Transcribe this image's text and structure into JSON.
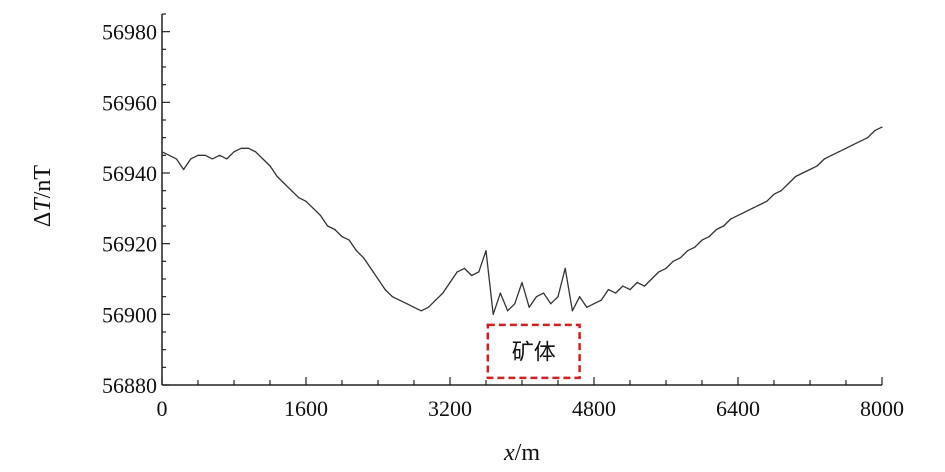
{
  "chart_data": {
    "type": "line",
    "title": "",
    "xlabel": {
      "italic": "x",
      "rest": "/m"
    },
    "ylabel": {
      "delta": "Δ",
      "italic": "T",
      "rest": "/nT"
    },
    "xlim": [
      0,
      8000
    ],
    "ylim": [
      56880,
      56985
    ],
    "x_ticks": [
      0,
      1600,
      3200,
      4800,
      6400,
      8000
    ],
    "x_tick_labels": [
      "0",
      "1600",
      "3200",
      "4800",
      "6400",
      "8000"
    ],
    "y_ticks": [
      56880,
      56900,
      56920,
      56940,
      56960,
      56980
    ],
    "y_tick_labels": [
      "56880",
      "56900",
      "56920",
      "56940",
      "56960",
      "56980"
    ],
    "grid": false,
    "line_color": "#333333",
    "annotation": {
      "text": "矿体",
      "x_range": [
        3620,
        4640
      ],
      "y_range": [
        56882,
        56897
      ],
      "border_color": "#cc2222"
    },
    "series": [
      {
        "x": [
          0,
          80,
          160,
          240,
          320,
          400,
          480,
          560,
          640,
          720,
          800,
          880,
          960,
          1040,
          1120,
          1200,
          1280,
          1360,
          1440,
          1520,
          1600,
          1680,
          1760,
          1840,
          1920,
          2000,
          2080,
          2160,
          2240,
          2320,
          2400,
          2480,
          2560,
          2640,
          2720,
          2800,
          2880,
          2960,
          3040,
          3120,
          3200,
          3280,
          3360,
          3440,
          3520,
          3600,
          3680,
          3760,
          3840,
          3920,
          4000,
          4080,
          4160,
          4240,
          4320,
          4400,
          4480,
          4560,
          4640,
          4720,
          4800,
          4880,
          4960,
          5040,
          5120,
          5200,
          5280,
          5360,
          5440,
          5520,
          5600,
          5680,
          5760,
          5840,
          5920,
          6000,
          6080,
          6160,
          6240,
          6320,
          6400,
          6480,
          6560,
          6640,
          6720,
          6800,
          6880,
          6960,
          7040,
          7120,
          7200,
          7280,
          7360,
          7440,
          7520,
          7600,
          7680,
          7760,
          7840,
          7920,
          8000
        ],
        "values": [
          56946,
          56945,
          56944,
          56941,
          56944,
          56945,
          56945,
          56944,
          56945,
          56944,
          56946,
          56947,
          56947,
          56946,
          56944,
          56942,
          56939,
          56937,
          56935,
          56933,
          56932,
          56930,
          56928,
          56925,
          56924,
          56922,
          56921,
          56918,
          56916,
          56913,
          56910,
          56907,
          56905,
          56904,
          56903,
          56902,
          56901,
          56902,
          56904,
          56906,
          56909,
          56912,
          56913,
          56911,
          56912,
          56918,
          56900,
          56906,
          56901,
          56903,
          56909,
          56902,
          56905,
          56906,
          56903,
          56905,
          56913,
          56901,
          56905,
          56902,
          56903,
          56904,
          56907,
          56906,
          56908,
          56907,
          56909,
          56908,
          56910,
          56912,
          56913,
          56915,
          56916,
          56918,
          56919,
          56921,
          56922,
          56924,
          56925,
          56927,
          56928,
          56929,
          56930,
          56931,
          56932,
          56934,
          56935,
          56937,
          56939,
          56940,
          56941,
          56942,
          56944,
          56945,
          56946,
          56947,
          56948,
          56949,
          56950,
          56952,
          56953
        ]
      }
    ]
  }
}
